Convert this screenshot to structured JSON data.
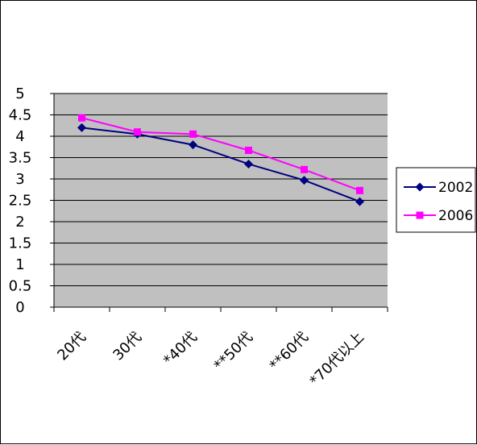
{
  "chart_data": {
    "type": "line",
    "title": "",
    "xlabel": "",
    "ylabel": "",
    "categories": [
      "20代",
      "30代",
      "*40代",
      "**50代",
      "**60代",
      "*70代以上"
    ],
    "series": [
      {
        "name": "2002",
        "color": "#000080",
        "marker": "diamond",
        "values": [
          4.2,
          4.05,
          3.8,
          3.35,
          2.97,
          2.47
        ]
      },
      {
        "name": "2006",
        "color": "#FF00FF",
        "marker": "square",
        "values": [
          4.43,
          4.1,
          4.05,
          3.67,
          3.22,
          2.73
        ]
      }
    ],
    "ylim": [
      0,
      5
    ],
    "yticks": [
      "0",
      "0.5",
      "1",
      "1.5",
      "2",
      "2.5",
      "3",
      "3.5",
      "4",
      "4.5",
      "5"
    ],
    "grid": true,
    "plot_background": "#C0C0C0",
    "legend_position": "right"
  }
}
